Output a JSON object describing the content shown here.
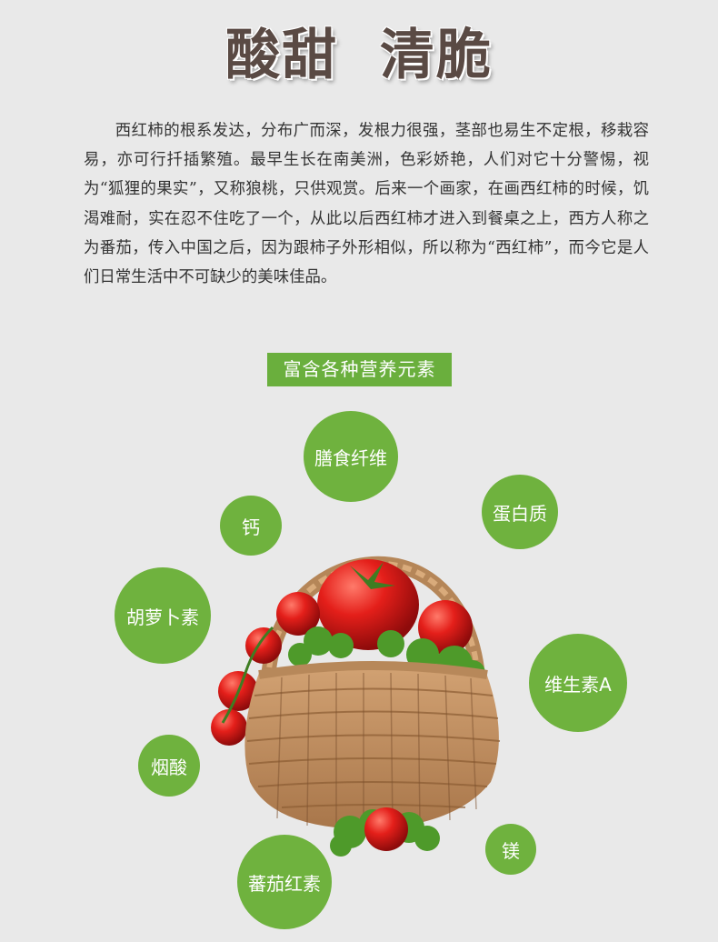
{
  "header": {
    "title": "酸甜  清脆"
  },
  "intro": {
    "text": "西红柿的根系发达，分布广而深，发根力很强，茎部也易生不定根，移栽容易，亦可行扦插繁殖。最早生长在南美洲，色彩娇艳，人们对它十分警惕，视为“狐狸的果实”，又称狼桃，只供观赏。后来一个画家，在画西红柿的时候，饥渴难耐，实在忍不住吃了一个，从此以后西红柿才进入到餐桌之上，西方人称之为番茄，传入中国之后，因为跟柿子外形相似，所以称为“西红柿”，而今它是人们日常生活中不可缺少的美味佳品。"
  },
  "nutrients": {
    "title": "富含各种营养元素",
    "items": {
      "fiber": "膳食纤维",
      "protein": "蛋白质",
      "calcium": "钙",
      "carotene": "胡萝卜素",
      "vitamin_a": "维生素A",
      "niacin": "烟酸",
      "magnesium": "镁",
      "lycopene": "蕃茄红素"
    }
  },
  "colors": {
    "accent_green": "#6fb23e",
    "background": "#e9e9e9",
    "title_brown": "#5a4a44"
  },
  "image": {
    "icon": "basket-of-tomatoes-illustration"
  }
}
